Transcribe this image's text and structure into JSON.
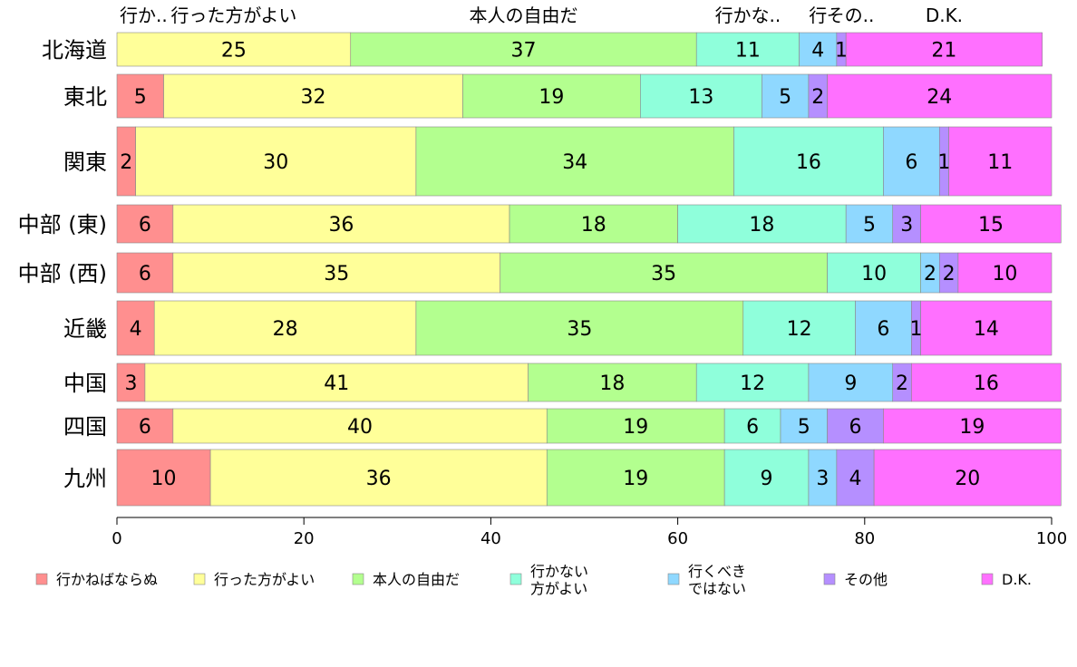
{
  "chart_data": {
    "type": "bar",
    "orientation": "horizontal",
    "stacked": true,
    "categories": [
      "北海道",
      "東北",
      "関東",
      "中部 (東)",
      "中部 (西)",
      "近畿",
      "中国",
      "四国",
      "九州"
    ],
    "series": [
      {
        "name": "行かねばならぬ",
        "color": "#ff8f8f",
        "values": [
          0,
          5,
          2,
          6,
          6,
          4,
          3,
          6,
          10
        ]
      },
      {
        "name": "行った方がよい",
        "color": "#ffff99",
        "values": [
          25,
          32,
          30,
          36,
          35,
          28,
          41,
          40,
          36
        ]
      },
      {
        "name": "本人の自由だ",
        "color": "#b3ff8f",
        "values": [
          37,
          19,
          34,
          18,
          35,
          35,
          18,
          19,
          19
        ]
      },
      {
        "name": "行かない\n方がよい",
        "color": "#8fffdb",
        "values": [
          11,
          13,
          16,
          18,
          10,
          12,
          12,
          6,
          9
        ]
      },
      {
        "name": "行くべき\nではない",
        "color": "#8fd8ff",
        "values": [
          4,
          5,
          6,
          5,
          2,
          6,
          9,
          5,
          3
        ]
      },
      {
        "name": "その他",
        "color": "#b58fff",
        "values": [
          1,
          2,
          1,
          3,
          2,
          1,
          2,
          6,
          4
        ]
      },
      {
        "name": "D.K.",
        "color": "#ff70ff",
        "values": [
          21,
          24,
          11,
          15,
          10,
          14,
          16,
          19,
          20
        ]
      }
    ],
    "top_labels": [
      "行か..",
      "行った方がよい",
      "本人の自由だ",
      "行かな..",
      "行",
      "その..",
      "D.K."
    ],
    "xlim": [
      0,
      100
    ],
    "xticks": [
      "0",
      "20",
      "40",
      "60",
      "80",
      "100"
    ],
    "legend_position": "bottom"
  }
}
